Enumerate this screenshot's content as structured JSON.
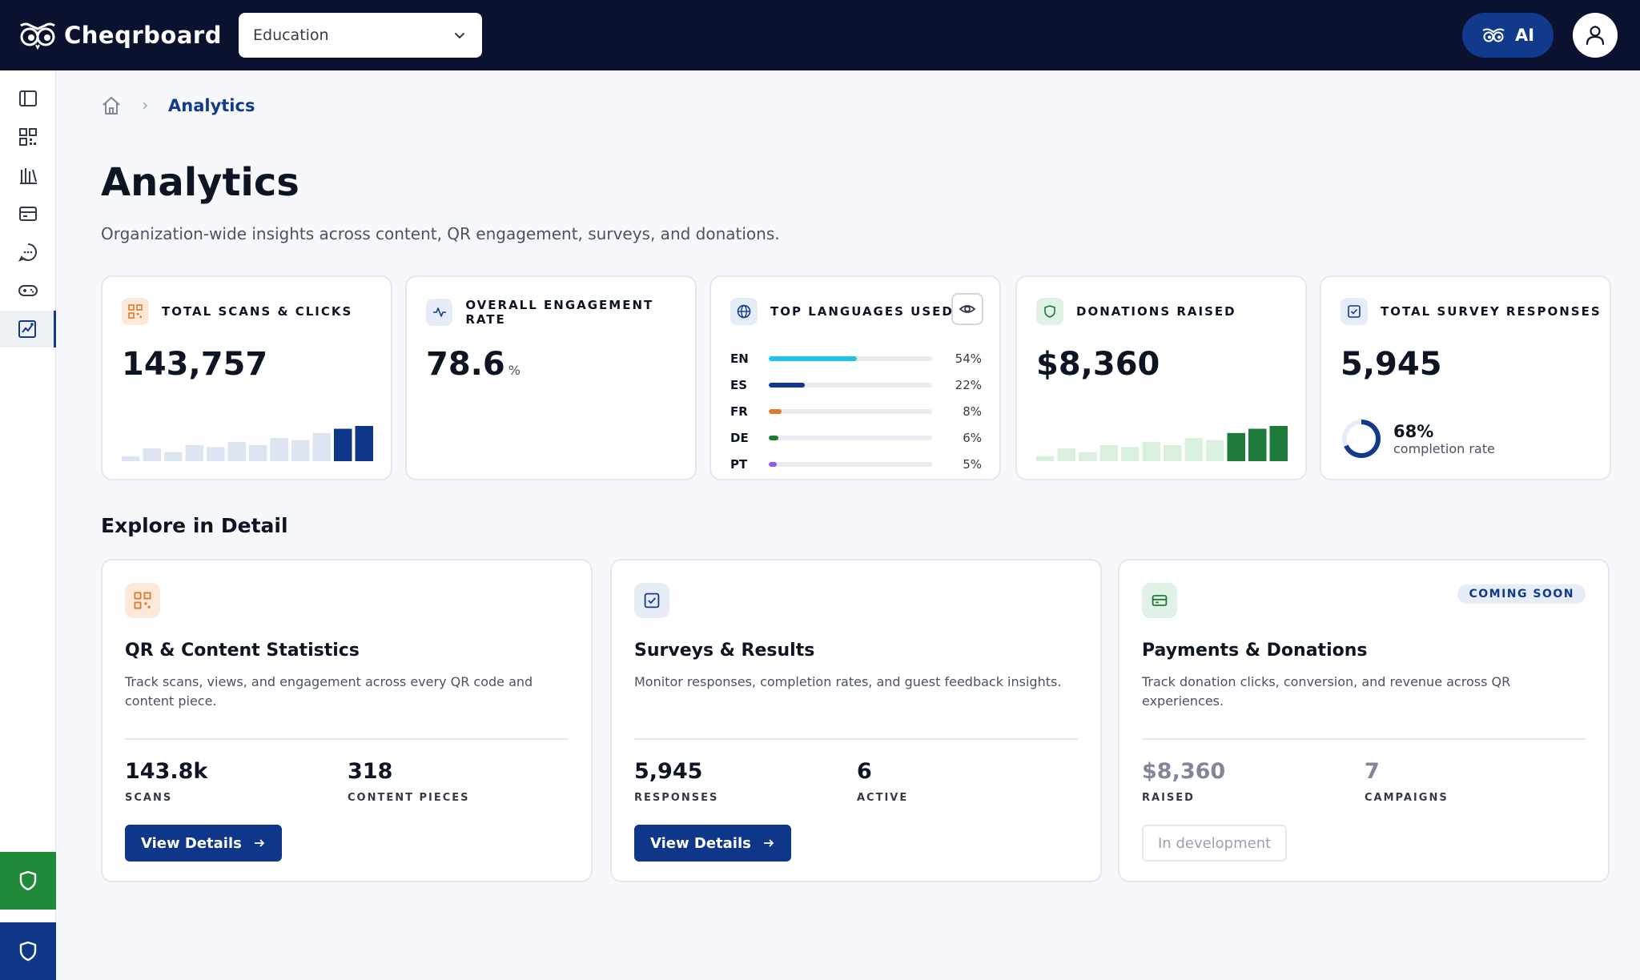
{
  "header": {
    "app_name": "Cheqrboard",
    "org_select_value": "Education",
    "ai_label": "AI"
  },
  "sidebar": {
    "items": [
      {
        "icon": "panel-icon"
      },
      {
        "icon": "qr-grid-icon"
      },
      {
        "icon": "library-icon"
      },
      {
        "icon": "card-icon"
      },
      {
        "icon": "chat-icon"
      },
      {
        "icon": "gamepad-icon"
      },
      {
        "icon": "analytics-icon",
        "active": true
      }
    ]
  },
  "breadcrumb": {
    "current": "Analytics"
  },
  "page": {
    "title": "Analytics",
    "subtitle": "Organization-wide insights across content, QR engagement, surveys, and donations."
  },
  "kpis": {
    "scans": {
      "label": "TOTAL SCANS & CLICKS",
      "value": "143,757",
      "trend": [
        0.14,
        0.36,
        0.26,
        0.46,
        0.4,
        0.55,
        0.46,
        0.66,
        0.6,
        0.8,
        0.92,
        1.0
      ]
    },
    "engagement": {
      "label": "OVERALL ENGAGEMENT RATE",
      "value": "78.6",
      "unit": "%"
    },
    "languages": {
      "label": "TOP LANGUAGES USED",
      "rows": [
        {
          "code": "EN",
          "pct": "54%",
          "fraction": 0.54,
          "color": "#18c4ec"
        },
        {
          "code": "ES",
          "pct": "22%",
          "fraction": 0.22,
          "color": "#123a8c"
        },
        {
          "code": "FR",
          "pct": "8%",
          "fraction": 0.08,
          "color": "#e07a2a"
        },
        {
          "code": "DE",
          "pct": "6%",
          "fraction": 0.06,
          "color": "#1e7a3a"
        },
        {
          "code": "PT",
          "pct": "5%",
          "fraction": 0.05,
          "color": "#8a5cf0"
        }
      ]
    },
    "donations": {
      "label": "DONATIONS RAISED",
      "value": "$8,360",
      "trend": [
        0.14,
        0.36,
        0.26,
        0.46,
        0.4,
        0.55,
        0.46,
        0.66,
        0.6,
        0.8,
        0.92,
        1.0
      ]
    },
    "surveys": {
      "label": "TOTAL SURVEY RESPONSES",
      "value": "5,945",
      "completion_pct": "68%",
      "completion_fraction": 0.68,
      "completion_caption": "completion rate"
    }
  },
  "explore": {
    "title": "Explore in Detail",
    "cards": [
      {
        "title": "QR & Content Statistics",
        "description": "Track scans, views, and engagement across every QR code and content piece.",
        "stat1_value": "143.8k",
        "stat1_label": "SCANS",
        "stat2_value": "318",
        "stat2_label": "CONTENT PIECES",
        "button": "View Details"
      },
      {
        "title": "Surveys & Results",
        "description": "Monitor responses, completion rates, and guest feedback insights.",
        "stat1_value": "5,945",
        "stat1_label": "RESPONSES",
        "stat2_value": "6",
        "stat2_label": "ACTIVE",
        "button": "View Details"
      },
      {
        "title": "Payments & Donations",
        "description": "Track donation clicks, conversion, and revenue across QR experiences.",
        "badge": "COMING SOON",
        "stat1_value": "$8,360",
        "stat1_label": "RAISED",
        "stat2_value": "7",
        "stat2_label": "CAMPAIGNS",
        "button": "In development"
      }
    ]
  },
  "colors": {
    "navy": "#0a1230",
    "primary": "#0f3789",
    "accent_cyan": "#18c4ec",
    "green": "#1e7a3a",
    "orange": "#e07a2a"
  }
}
